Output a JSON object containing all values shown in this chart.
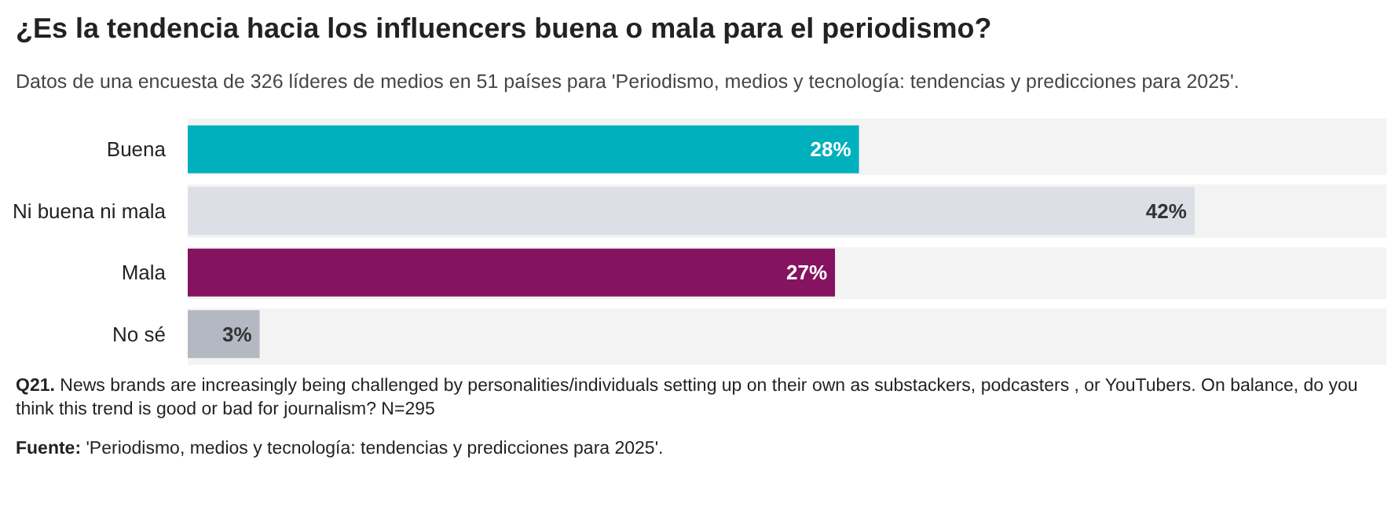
{
  "chart_data": {
    "type": "bar",
    "orientation": "horizontal",
    "title": "¿Es la tendencia hacia los influencers buena o mala para el periodismo?",
    "subtitle": "Datos de una encuesta de 326 líderes de medios en 51 países para 'Periodismo, medios y tecnología: tendencias y predicciones para 2025'.",
    "categories": [
      "Buena",
      "Ni buena ni mala",
      "Mala",
      "No sé"
    ],
    "values": [
      28,
      42,
      27,
      3
    ],
    "colors": [
      "#00b0bd",
      "#dcdfe6",
      "#85135f",
      "#b3b8c3"
    ],
    "value_labels": [
      "28%",
      "42%",
      "27%",
      "3%"
    ],
    "tick_labels": "y",
    "annotations": [
      "Q21. News brands are increasingly being challenged by personalities/individuals setting up on their own as substackers, podcasters , or YouTubers. On balance, do you think this trend is good or bad for journalism? N=295",
      "Fuente: 'Periodismo, medios y tecnología: tendencias y predicciones para 2025'."
    ]
  }
}
